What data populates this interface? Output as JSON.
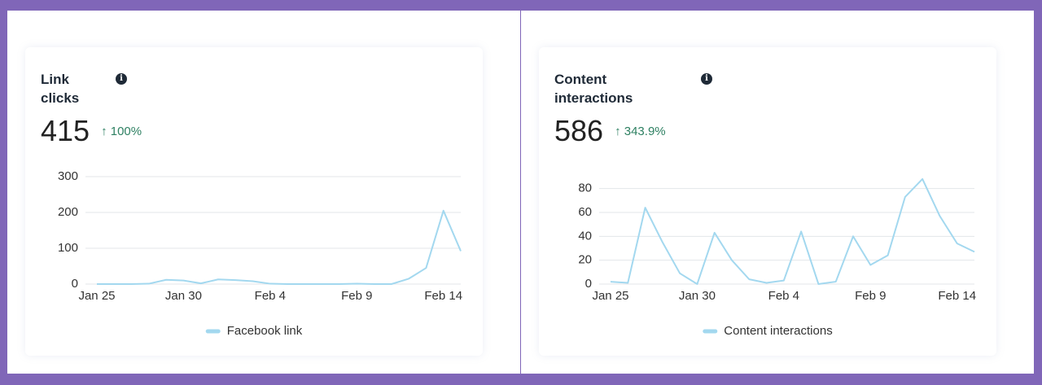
{
  "chart_data": [
    {
      "type": "line",
      "title": "Link clicks",
      "total": "415",
      "change": "100%",
      "categories": [
        "Jan 25",
        null,
        null,
        null,
        null,
        "Jan 30",
        null,
        null,
        null,
        null,
        "Feb 4",
        null,
        null,
        null,
        null,
        "Feb 9",
        null,
        null,
        null,
        null,
        "Feb 14",
        null
      ],
      "series": [
        {
          "name": "Facebook link",
          "color": "#a3d8ef",
          "values": [
            0,
            0,
            0,
            1,
            12,
            10,
            2,
            13,
            11,
            8,
            1,
            0,
            0,
            0,
            0,
            1,
            0,
            0,
            15,
            45,
            205,
            92
          ]
        }
      ],
      "ylim": [
        0,
        300
      ],
      "yticks": [
        0,
        100,
        200,
        300
      ],
      "grid": true
    },
    {
      "type": "line",
      "title": "Content interactions",
      "total": "586",
      "change": "343.9%",
      "categories": [
        "Jan 25",
        null,
        null,
        null,
        null,
        "Jan 30",
        null,
        null,
        null,
        null,
        "Feb 4",
        null,
        null,
        null,
        null,
        "Feb 9",
        null,
        null,
        null,
        null,
        "Feb 14",
        null
      ],
      "series": [
        {
          "name": "Content interactions",
          "color": "#a3d8ef",
          "values": [
            2,
            1,
            64,
            35,
            9,
            0,
            43,
            20,
            4,
            1,
            3,
            44,
            0,
            2,
            40,
            16,
            24,
            73,
            88,
            57,
            34,
            27
          ]
        }
      ],
      "ylim": [
        0,
        90
      ],
      "yticks": [
        0,
        20,
        40,
        60,
        80
      ],
      "grid": true
    }
  ]
}
